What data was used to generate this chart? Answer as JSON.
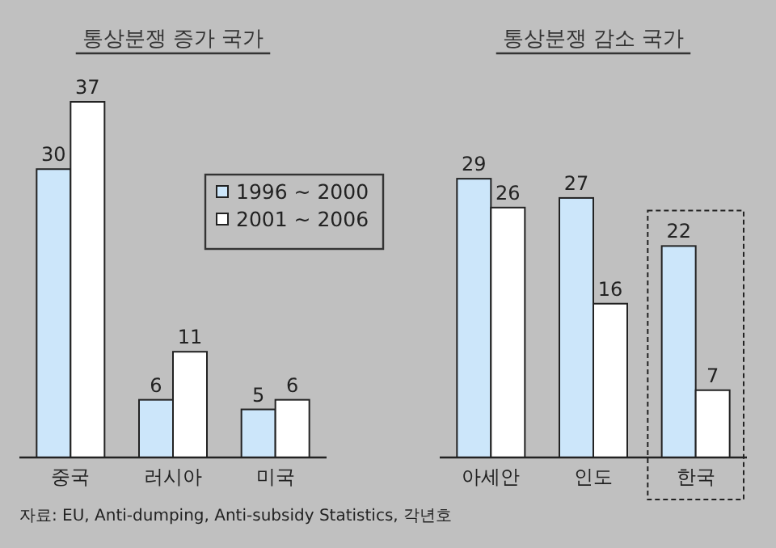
{
  "chart_data": [
    {
      "type": "bar",
      "title": "통상분쟁 증가 국가",
      "categories": [
        "중국",
        "러시아",
        "미국"
      ],
      "series": [
        {
          "name": "1996 ~ 2000",
          "color": "#cce6fa",
          "values": [
            30,
            6,
            5
          ]
        },
        {
          "name": "2001 ~ 2006",
          "color": "#ffffff",
          "values": [
            37,
            11,
            6
          ]
        }
      ],
      "data_labels": true,
      "legend": "right"
    },
    {
      "type": "bar",
      "title": "통상분쟁 감소 국가",
      "categories": [
        "아세안",
        "인도",
        "한국"
      ],
      "series": [
        {
          "color": "#cce6fa",
          "values": [
            29,
            27,
            22
          ]
        },
        {
          "color": "#ffffff",
          "values": [
            26,
            16,
            7
          ]
        }
      ],
      "data_labels": true,
      "annotations": [
        "자료: EU, Anti-dumping, Anti-subsidy Statistics, 각년호"
      ]
    }
  ]
}
